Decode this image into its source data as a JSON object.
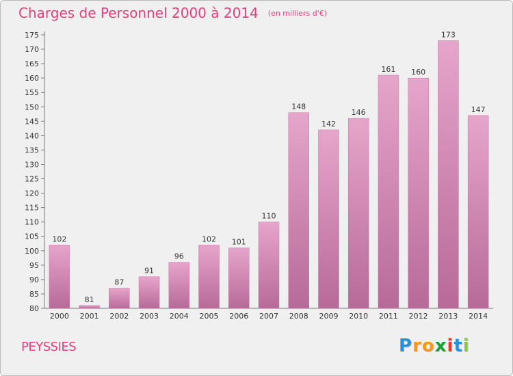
{
  "title": "Charges de Personnel 2000 à 2014",
  "unit": "(en milliers d'€)",
  "commune": "PEYSSIES",
  "logo": {
    "letters": [
      "P",
      "r",
      "o",
      "x",
      "i",
      "t",
      "i"
    ],
    "colors": [
      "#2b8fd8",
      "#f29a1b",
      "#f29a1b",
      "#1aa33b",
      "#e23b2e",
      "#2b8fd8",
      "#8bc43f"
    ]
  },
  "chart_data": {
    "type": "bar",
    "categories": [
      "2000",
      "2001",
      "2002",
      "2003",
      "2004",
      "2005",
      "2006",
      "2007",
      "2008",
      "2009",
      "2010",
      "2011",
      "2012",
      "2013",
      "2014"
    ],
    "values": [
      102,
      81,
      87,
      91,
      96,
      102,
      101,
      110,
      148,
      142,
      146,
      161,
      160,
      173,
      147
    ],
    "ylim": [
      80,
      175
    ],
    "yticks": [
      80,
      85,
      90,
      95,
      100,
      105,
      110,
      115,
      120,
      125,
      130,
      135,
      140,
      145,
      150,
      155,
      160,
      165,
      170,
      175
    ],
    "grid": false,
    "bar_color": "#d98fba"
  }
}
